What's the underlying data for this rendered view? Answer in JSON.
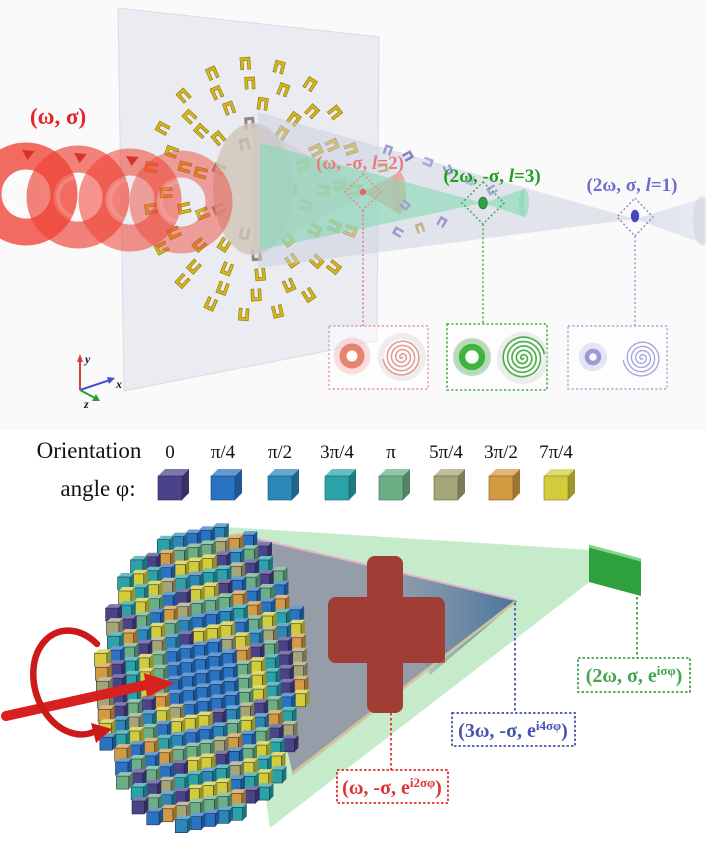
{
  "top": {
    "input_label": "(ω, σ)",
    "input_color": "#e32525",
    "beam_red": {
      "pre": "(ω, -σ, ",
      "ital": "l",
      "post": "=2)",
      "color": "#e87c7c"
    },
    "beam_green": {
      "pre": "(2ω, -σ, ",
      "ital": "l",
      "post": "=3)",
      "color": "#1ea11e"
    },
    "beam_blue": {
      "pre": "(2ω, σ, ",
      "ital": "l",
      "post": "=1)",
      "color": "#6e6ed2"
    },
    "axes": {
      "x": "x",
      "y": "y",
      "z": "z"
    }
  },
  "legend": {
    "title_line1": "Orientation",
    "title_line2": "angle φ:",
    "items": [
      {
        "label": "0",
        "color": "#4a4389"
      },
      {
        "label": "π/4",
        "color": "#2a72c2"
      },
      {
        "label": "π/2",
        "color": "#2c87b8"
      },
      {
        "label": "3π/4",
        "color": "#2aa2a8"
      },
      {
        "label": "π",
        "color": "#6cae85"
      },
      {
        "label": "5π/4",
        "color": "#a5a577"
      },
      {
        "label": "3π/2",
        "color": "#d39a42"
      },
      {
        "label": "7π/4",
        "color": "#d3cb3a"
      }
    ]
  },
  "bottom": {
    "label_red": {
      "pre": "(ω, -σ, e",
      "sup": "i2σφ",
      "post": ")",
      "color": "#e03030"
    },
    "label_blue": {
      "pre": "(3ω, -σ, e",
      "sup": "i4σφ",
      "post": ")",
      "color": "#4553ae"
    },
    "label_green": {
      "pre": "(2ω, σ, e",
      "sup": "iσφ",
      "post": ")",
      "color": "#42a44e"
    }
  },
  "colors": {
    "gold_antenna": "#d4b619",
    "metasurface_plane": "#e9ebf2",
    "fundamental_cone": "#cfc5b5",
    "sh_gray_beam": "#c9cede",
    "green_beam_top": "#86d8b4",
    "bottom_gray_beam": "#939aa6",
    "bottom_green_beam": "#97db9f",
    "bottom_blue_cone": "#41719b",
    "green_screen": "#2ea13e",
    "cross": "#a03e35",
    "cross_cap": "#c5511f",
    "pump_red": "#ef4335"
  }
}
